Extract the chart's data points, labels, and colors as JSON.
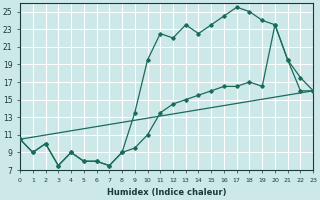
{
  "xlabel": "Humidex (Indice chaleur)",
  "background_color": "#cde8e8",
  "grid_color": "#b0d0d0",
  "line_color": "#1a6b5a",
  "x_min": 0,
  "x_max": 23,
  "y_min": 7,
  "y_max": 26,
  "yticks": [
    7,
    9,
    11,
    13,
    15,
    17,
    19,
    21,
    23,
    25
  ],
  "xticks": [
    0,
    1,
    2,
    3,
    4,
    5,
    6,
    7,
    8,
    9,
    10,
    11,
    12,
    13,
    14,
    15,
    16,
    17,
    18,
    19,
    20,
    21,
    22,
    23
  ],
  "line1_x": [
    0,
    1,
    2,
    3,
    4,
    5,
    6,
    7,
    8,
    9,
    10,
    11,
    12,
    13,
    14,
    15,
    16,
    17,
    18,
    19,
    20,
    21,
    22,
    23
  ],
  "line1_y": [
    10.5,
    9.0,
    10.0,
    7.5,
    9.0,
    8.0,
    8.0,
    7.5,
    9.0,
    13.5,
    19.5,
    22.5,
    22.0,
    23.5,
    22.5,
    23.5,
    24.5,
    25.5,
    25.0,
    24.0,
    23.5,
    19.5,
    17.5,
    16.0
  ],
  "line2_x": [
    0,
    1,
    2,
    3,
    4,
    5,
    6,
    7,
    8,
    9,
    10,
    11,
    12,
    13,
    14,
    15,
    16,
    17,
    18,
    19,
    20,
    21,
    22,
    23
  ],
  "line2_y": [
    10.5,
    9.0,
    10.0,
    7.5,
    9.0,
    8.0,
    8.0,
    7.5,
    9.0,
    9.5,
    11.0,
    13.5,
    14.5,
    15.0,
    15.5,
    16.0,
    16.5,
    16.5,
    17.0,
    16.5,
    23.5,
    19.5,
    16.0,
    16.0
  ],
  "line3_x": [
    0,
    23
  ],
  "line3_y": [
    10.5,
    16.0
  ]
}
